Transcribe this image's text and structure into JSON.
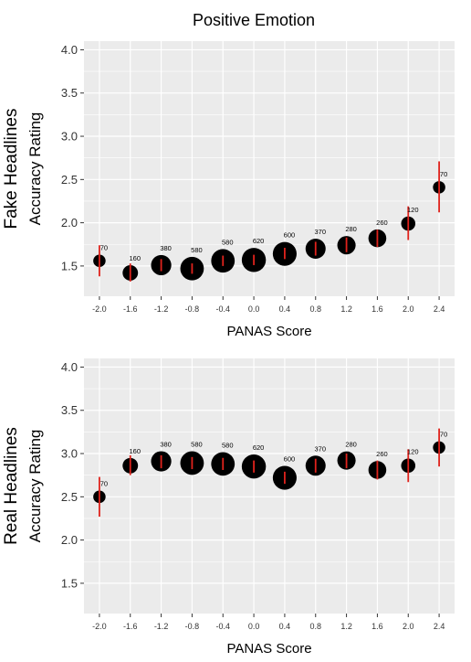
{
  "figure": {
    "title": "Positive Emotion"
  },
  "chart_data": [
    {
      "type": "scatter",
      "panel_label": "Fake Headlines",
      "ylabel": "Accuracy Rating",
      "xlabel": "PANAS Score",
      "x_ticks": [
        "-2.0",
        "-1.6",
        "-1.2",
        "-0.8",
        "-0.4",
        "0.0",
        "0.4",
        "0.8",
        "1.2",
        "1.6",
        "2.0",
        "2.4"
      ],
      "y_ticks": [
        "1.5",
        "2.0",
        "2.5",
        "3.0",
        "3.5",
        "4.0"
      ],
      "xlim": [
        -2.2,
        2.6
      ],
      "ylim": [
        1.15,
        4.1
      ],
      "grid": true,
      "colors": {
        "point": "#000000",
        "error_bar": "#e0231c",
        "panel_bg": "#ebebeb",
        "grid": "#ffffff"
      },
      "points": [
        {
          "x": -2.0,
          "y": 1.56,
          "ci_low": 1.38,
          "ci_high": 1.74,
          "n": 70
        },
        {
          "x": -1.6,
          "y": 1.42,
          "ci_low": 1.32,
          "ci_high": 1.53,
          "n": 160
        },
        {
          "x": -1.2,
          "y": 1.51,
          "ci_low": 1.44,
          "ci_high": 1.58,
          "n": 380
        },
        {
          "x": -0.8,
          "y": 1.47,
          "ci_low": 1.41,
          "ci_high": 1.53,
          "n": 580
        },
        {
          "x": -0.4,
          "y": 1.56,
          "ci_low": 1.5,
          "ci_high": 1.62,
          "n": 580
        },
        {
          "x": 0.0,
          "y": 1.57,
          "ci_low": 1.51,
          "ci_high": 1.63,
          "n": 620
        },
        {
          "x": 0.4,
          "y": 1.64,
          "ci_low": 1.58,
          "ci_high": 1.71,
          "n": 600
        },
        {
          "x": 0.8,
          "y": 1.7,
          "ci_low": 1.62,
          "ci_high": 1.78,
          "n": 370
        },
        {
          "x": 1.2,
          "y": 1.74,
          "ci_low": 1.66,
          "ci_high": 1.83,
          "n": 280
        },
        {
          "x": 1.6,
          "y": 1.82,
          "ci_low": 1.72,
          "ci_high": 1.92,
          "n": 260
        },
        {
          "x": 2.0,
          "y": 1.99,
          "ci_low": 1.8,
          "ci_high": 2.19,
          "n": 120
        },
        {
          "x": 2.4,
          "y": 2.41,
          "ci_low": 2.12,
          "ci_high": 2.71,
          "n": 70
        }
      ]
    },
    {
      "type": "scatter",
      "panel_label": "Real Headlines",
      "ylabel": "Accuracy Rating",
      "xlabel": "PANAS Score",
      "x_ticks": [
        "-2.0",
        "-1.6",
        "-1.2",
        "-0.8",
        "-0.4",
        "0.0",
        "0.4",
        "0.8",
        "1.2",
        "1.6",
        "2.0",
        "2.4"
      ],
      "y_ticks": [
        "1.5",
        "2.0",
        "2.5",
        "3.0",
        "3.5",
        "4.0"
      ],
      "xlim": [
        -2.2,
        2.6
      ],
      "ylim": [
        1.15,
        4.1
      ],
      "grid": true,
      "colors": {
        "point": "#000000",
        "error_bar": "#e0231c",
        "panel_bg": "#ebebeb",
        "grid": "#ffffff"
      },
      "points": [
        {
          "x": -2.0,
          "y": 2.5,
          "ci_low": 2.27,
          "ci_high": 2.73,
          "n": 70
        },
        {
          "x": -1.6,
          "y": 2.86,
          "ci_low": 2.75,
          "ci_high": 2.98,
          "n": 160
        },
        {
          "x": -1.2,
          "y": 2.91,
          "ci_low": 2.83,
          "ci_high": 2.98,
          "n": 380
        },
        {
          "x": -0.8,
          "y": 2.89,
          "ci_low": 2.82,
          "ci_high": 2.96,
          "n": 580
        },
        {
          "x": -0.4,
          "y": 2.88,
          "ci_low": 2.81,
          "ci_high": 2.95,
          "n": 580
        },
        {
          "x": 0.0,
          "y": 2.85,
          "ci_low": 2.78,
          "ci_high": 2.92,
          "n": 620
        },
        {
          "x": 0.4,
          "y": 2.72,
          "ci_low": 2.65,
          "ci_high": 2.79,
          "n": 600
        },
        {
          "x": 0.8,
          "y": 2.86,
          "ci_low": 2.78,
          "ci_high": 2.94,
          "n": 370
        },
        {
          "x": 1.2,
          "y": 2.92,
          "ci_low": 2.83,
          "ci_high": 3.0,
          "n": 280
        },
        {
          "x": 1.6,
          "y": 2.81,
          "ci_low": 2.7,
          "ci_high": 2.92,
          "n": 260
        },
        {
          "x": 2.0,
          "y": 2.86,
          "ci_low": 2.67,
          "ci_high": 3.05,
          "n": 120
        },
        {
          "x": 2.4,
          "y": 3.07,
          "ci_low": 2.85,
          "ci_high": 3.29,
          "n": 70
        }
      ]
    }
  ]
}
